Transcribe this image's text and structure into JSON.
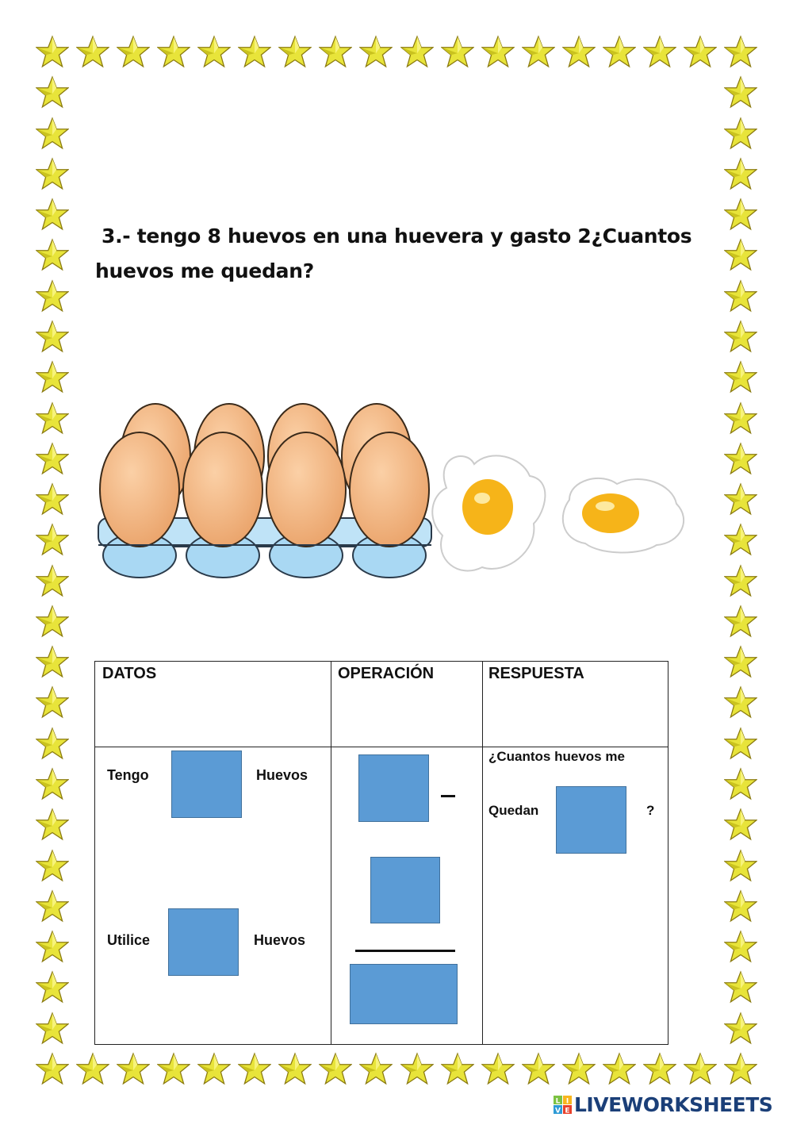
{
  "question": {
    "line1": "3.-   tengo 8 huevos en una huevera  y  gasto 2¿Cuantos",
    "line2": "huevos  me quedan?"
  },
  "illustration": {
    "eggs_in_carton": 8,
    "fried_eggs": 2
  },
  "table": {
    "headers": [
      "DATOS",
      "OPERACIÓN",
      "RESPUESTA"
    ],
    "datos": {
      "tengo": "Tengo",
      "huevos1": "Huevos",
      "utilice": "Utilice",
      "huevos2": "Huevos"
    },
    "operacion": {
      "minus": "–"
    },
    "respuesta": {
      "question": "¿Cuantos  huevos  me",
      "quedan": "Quedan",
      "qmark": "?"
    }
  },
  "colors": {
    "answer_box": "#5b9bd5",
    "star": "#e8e43a",
    "brand": "#1b3f78"
  },
  "logo": {
    "text": "LIVEWORKSHEETS",
    "letters": [
      "L",
      "I",
      "V",
      "E"
    ]
  }
}
